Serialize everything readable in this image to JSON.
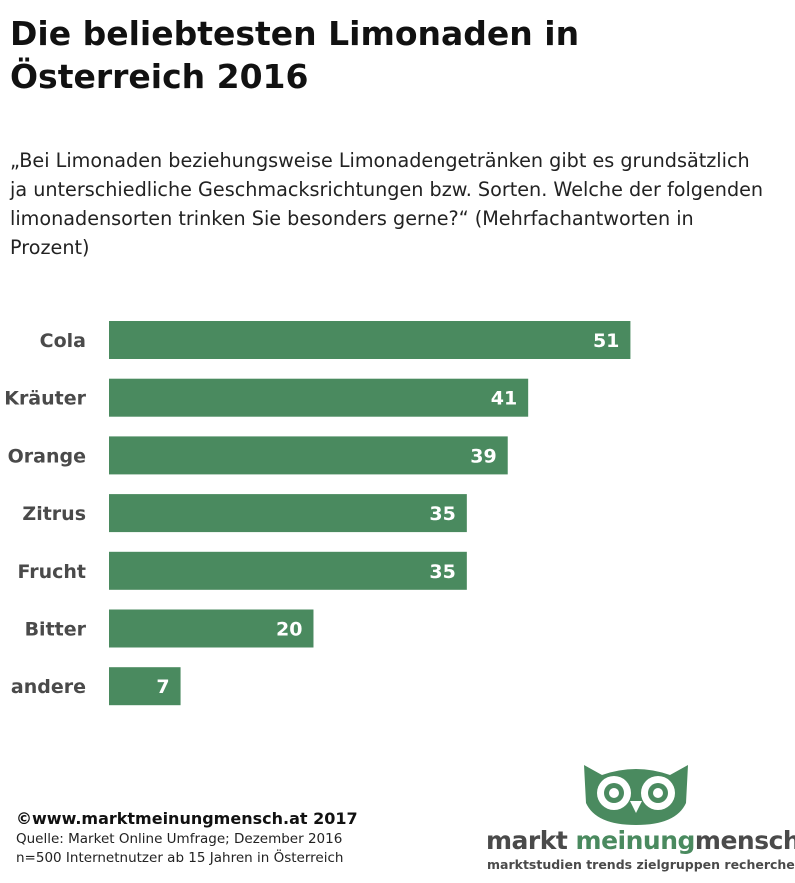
{
  "title": "Die beliebtesten Limonaden in Österreich 2016",
  "subtitle_lines": [
    "„Bei Limonaden beziehungsweise Limonadengetränken gibt es grundsätzlich",
    "ja unterschiedliche Geschmacksrichtungen bzw. Sorten. Welche der folgenden",
    "limonadensorten trinken Sie besonders gerne?“ (Mehrfachantworten in",
    "Prozent)"
  ],
  "colors": {
    "bar": "#4a8a5f",
    "bar_label": "#ffffff",
    "category_label": "#4a4a4a",
    "brand_green": "#4a8a5f",
    "brand_grey": "#4a4a4a"
  },
  "chart_data": {
    "type": "bar",
    "orientation": "horizontal",
    "categories": [
      "Cola",
      "Kräuter",
      "Orange",
      "Zitrus",
      "Frucht",
      "Bitter",
      "andere"
    ],
    "values": [
      51,
      41,
      39,
      35,
      35,
      20,
      7
    ],
    "xlim": [
      0,
      67
    ],
    "grid": false,
    "legend": "none",
    "data_labels": true
  },
  "footer": {
    "copyright": "©www.marktmeinungmensch.at 2017",
    "source": "Quelle: Market Online Umfrage; Dezember 2016",
    "sample": "n=500 Internetnutzer ab 15 Jahren in Österreich"
  },
  "logo": {
    "icon": "owl-icon",
    "brand_parts": [
      "markt",
      "meinung",
      "mensch"
    ],
    "tagline": "marktstudien trends zielgruppen recherchen"
  }
}
